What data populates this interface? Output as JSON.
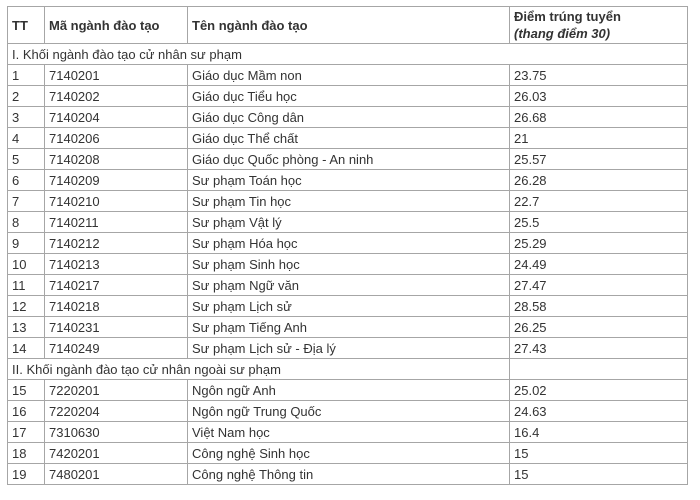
{
  "table": {
    "header": {
      "tt": "TT",
      "code": "Mã ngành đào tạo",
      "name": "Tên ngành đào tạo",
      "score_line1": "Điểm trúng tuyển",
      "score_line2": "(thang điểm 30)"
    },
    "sections": [
      {
        "title": "I. Khối ngành đào tạo cử nhân sư phạm",
        "section_spans_score_column": true,
        "rows": [
          {
            "tt": "1",
            "code": "7140201",
            "name": "Giáo dục Mầm non",
            "score": "23.75"
          },
          {
            "tt": "2",
            "code": "7140202",
            "name": "Giáo dục Tiểu học",
            "score": "26.03"
          },
          {
            "tt": "3",
            "code": "7140204",
            "name": "Giáo dục Công dân",
            "score": "26.68"
          },
          {
            "tt": "4",
            "code": "7140206",
            "name": "Giáo dục Thể chất",
            "score": "21"
          },
          {
            "tt": "5",
            "code": "7140208",
            "name": "Giáo dục Quốc phòng - An ninh",
            "score": "25.57"
          },
          {
            "tt": "6",
            "code": "7140209",
            "name": "Sư phạm Toán học",
            "score": "26.28"
          },
          {
            "tt": "7",
            "code": "7140210",
            "name": "Sư phạm Tin học",
            "score": "22.7"
          },
          {
            "tt": "8",
            "code": "7140211",
            "name": "Sư phạm Vật lý",
            "score": "25.5"
          },
          {
            "tt": "9",
            "code": "7140212",
            "name": "Sư phạm Hóa học",
            "score": "25.29"
          },
          {
            "tt": "10",
            "code": "7140213",
            "name": "Sư phạm Sinh học",
            "score": "24.49"
          },
          {
            "tt": "11",
            "code": "7140217",
            "name": "Sư phạm Ngữ văn",
            "score": "27.47"
          },
          {
            "tt": "12",
            "code": "7140218",
            "name": "Sư phạm Lịch sử",
            "score": "28.58"
          },
          {
            "tt": "13",
            "code": "7140231",
            "name": "Sư phạm Tiếng Anh",
            "score": "26.25"
          },
          {
            "tt": "14",
            "code": "7140249",
            "name": "Sư phạm Lịch sử - Địa lý",
            "score": "27.43"
          }
        ]
      },
      {
        "title": "II. Khối ngành đào tạo cử nhân ngoài sư phạm",
        "section_spans_score_column": false,
        "rows": [
          {
            "tt": "15",
            "code": "7220201",
            "name": "Ngôn ngữ Anh",
            "score": "25.02"
          },
          {
            "tt": "16",
            "code": "7220204",
            "name": "Ngôn ngữ Trung Quốc",
            "score": "24.63"
          },
          {
            "tt": "17",
            "code": "7310630",
            "name": "Việt Nam học",
            "score": "16.4"
          },
          {
            "tt": "18",
            "code": "7420201",
            "name": "Công nghệ Sinh học",
            "score": "15"
          },
          {
            "tt": "19",
            "code": "7480201",
            "name": "Công nghệ Thông tin",
            "score": "15"
          }
        ]
      }
    ],
    "colors": {
      "text": "#333333",
      "border": "#a6a6a6",
      "background": "#ffffff"
    }
  }
}
